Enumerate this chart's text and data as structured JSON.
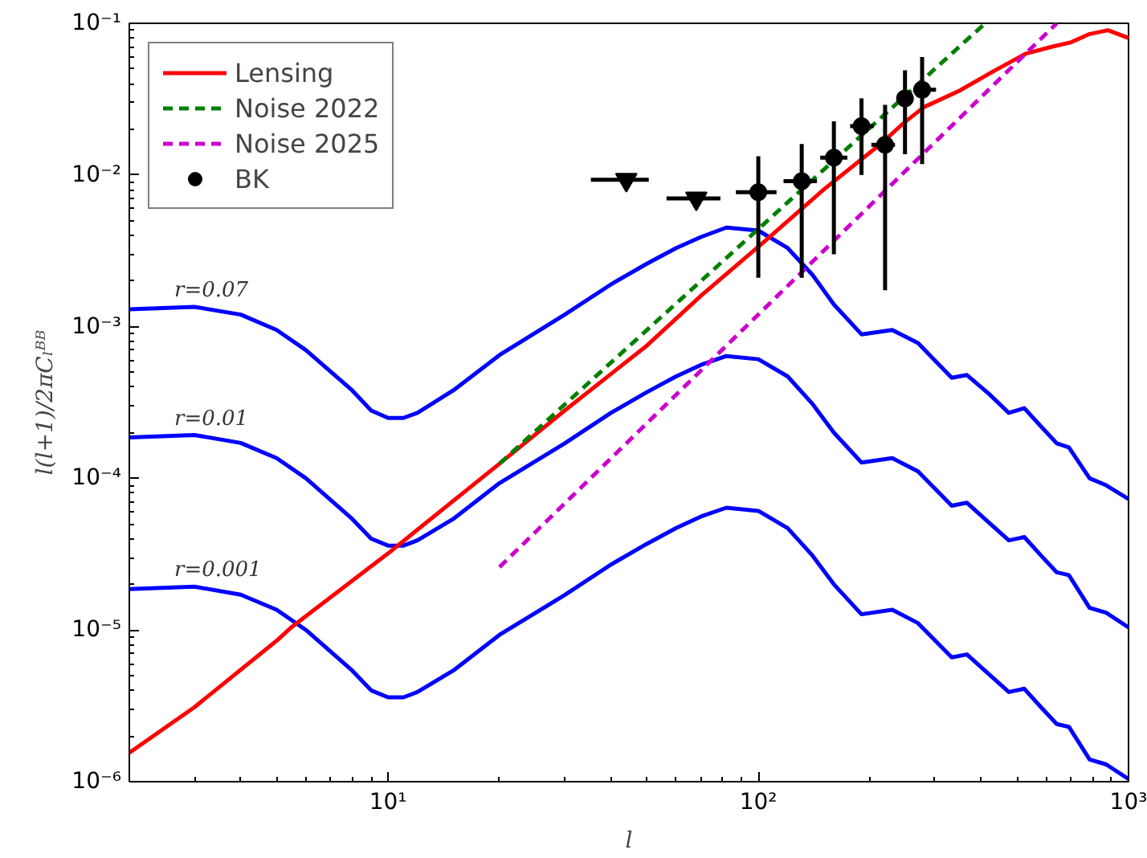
{
  "chart_data": {
    "type": "line",
    "xlabel": "l",
    "ylabel": "l(l+1)/2πCₗᴮᴮ",
    "xlim": [
      2,
      1000
    ],
    "ylim": [
      1e-06,
      0.1
    ],
    "xticks": [
      {
        "value": 10,
        "label": "10¹"
      },
      {
        "value": 100,
        "label": "10²"
      },
      {
        "value": 1000,
        "label": "10³"
      }
    ],
    "yticks": [
      {
        "value": 1e-06,
        "label": "10⁻⁶"
      },
      {
        "value": 1e-05,
        "label": "10⁻⁵"
      },
      {
        "value": 0.0001,
        "label": "10⁻⁴"
      },
      {
        "value": 0.001,
        "label": "10⁻³"
      },
      {
        "value": 0.01,
        "label": "10⁻²"
      },
      {
        "value": 0.1,
        "label": "10⁻¹"
      }
    ],
    "log": "xy",
    "grid": false,
    "legend": "top left",
    "marker": "none",
    "line_style": "solid",
    "series": [
      {
        "color": "#0000ff",
        "x": [
          2,
          3,
          4,
          5,
          6,
          8,
          9,
          10,
          11,
          12,
          15,
          20,
          30,
          40,
          50,
          60,
          70,
          82,
          100,
          120,
          140,
          160,
          190,
          230,
          270,
          333,
          366,
          420,
          475,
          523,
          580,
          640,
          690,
          785,
          870,
          1000
        ],
        "values": [
          0.0013,
          0.00135,
          0.0012,
          0.00095,
          0.0007,
          0.00038,
          0.00028,
          0.00025,
          0.00025,
          0.00027,
          0.00038,
          0.00065,
          0.0012,
          0.0019,
          0.0026,
          0.0033,
          0.0039,
          0.0045,
          0.0043,
          0.0033,
          0.0022,
          0.0014,
          0.00089,
          0.00095,
          0.00078,
          0.00046,
          0.00048,
          0.00036,
          0.00027,
          0.00029,
          0.00022,
          0.00017,
          0.00016,
          0.0001,
          9e-05,
          7.3e-05
        ]
      },
      {
        "color": "#0000ff",
        "x": [
          2,
          3,
          4,
          5,
          6,
          8,
          9,
          10,
          11,
          12,
          15,
          20,
          30,
          40,
          50,
          60,
          70,
          82,
          100,
          120,
          140,
          160,
          190,
          230,
          270,
          333,
          366,
          420,
          475,
          523,
          580,
          640,
          690,
          785,
          870,
          1000
        ],
        "values": [
          0.000186,
          0.000193,
          0.000171,
          0.000136,
          0.0001,
          5.4e-05,
          4e-05,
          3.6e-05,
          3.6e-05,
          3.9e-05,
          5.4e-05,
          9.3e-05,
          0.00017,
          0.00027,
          0.00037,
          0.00047,
          0.00056,
          0.00064,
          0.00061,
          0.00047,
          0.00031,
          0.0002,
          0.000127,
          0.000136,
          0.000111,
          6.6e-05,
          6.9e-05,
          5.1e-05,
          3.9e-05,
          4.1e-05,
          3.1e-05,
          2.4e-05,
          2.3e-05,
          1.4e-05,
          1.3e-05,
          1.04e-05
        ]
      },
      {
        "color": "#0000ff",
        "x": [
          2,
          3,
          4,
          5,
          6,
          8,
          9,
          10,
          11,
          12,
          15,
          20,
          30,
          40,
          50,
          60,
          70,
          82,
          100,
          120,
          140,
          160,
          190,
          230,
          270,
          333,
          366,
          420,
          475,
          523,
          580,
          640,
          690,
          785,
          870,
          1000
        ],
        "values": [
          1.86e-05,
          1.93e-05,
          1.71e-05,
          1.36e-05,
          1e-05,
          5.4e-06,
          4e-06,
          3.6e-06,
          3.6e-06,
          3.9e-06,
          5.4e-06,
          9.3e-06,
          1.7e-05,
          2.7e-05,
          3.7e-05,
          4.7e-05,
          5.6e-05,
          6.4e-05,
          6.1e-05,
          4.7e-05,
          3.1e-05,
          2e-05,
          1.27e-05,
          1.36e-05,
          1.11e-05,
          6.6e-06,
          6.9e-06,
          5.1e-06,
          3.9e-06,
          4.1e-06,
          3.1e-06,
          2.4e-06,
          2.3e-06,
          1.4e-06,
          1.3e-06,
          1.04e-06
        ]
      },
      {
        "name": "Lensing",
        "color": "#ff0000",
        "x": [
          2,
          3,
          5,
          5.5,
          10,
          20,
          30,
          50,
          70,
          106,
          150,
          214,
          247,
          280,
          350,
          430,
          527,
          620,
          700,
          785,
          880,
          1000
        ],
        "values": [
          1.55e-06,
          3.1e-06,
          8.5e-06,
          1.05e-05,
          3.2e-05,
          0.000125,
          0.00028,
          0.00075,
          0.0016,
          0.0038,
          0.008,
          0.016,
          0.022,
          0.028,
          0.036,
          0.048,
          0.063,
          0.07,
          0.075,
          0.085,
          0.09,
          0.08
        ]
      },
      {
        "name": "Noise 2022",
        "color": "#008000",
        "line_style": "dashed",
        "x": [
          20,
          410
        ],
        "values": [
          0.000125,
          0.1
        ]
      },
      {
        "name": "Noise 2025",
        "color": "#cc00cc",
        "line_style": "dashed",
        "x": [
          20,
          640
        ],
        "values": [
          2.6e-05,
          0.1
        ]
      },
      {
        "name": "BK",
        "type": "scatter",
        "marker": "circle",
        "color": "#000000",
        "x": [
          100,
          131,
          160,
          190,
          220,
          249,
          277
        ],
        "values": [
          0.0077,
          0.0091,
          0.013,
          0.021,
          0.0158,
          0.032,
          0.0365
        ],
        "errors": [
          [
            0.0021,
            0.0133
          ],
          [
            0.0021,
            0.016
          ],
          [
            0.003,
            0.0226
          ],
          [
            0.01,
            0.032
          ],
          [
            0.00174,
            0.029
          ],
          [
            0.0137,
            0.049
          ],
          [
            0.0118,
            0.06
          ]
        ],
        "xerrors": [
          [
            87,
            112
          ],
          [
            117,
            144
          ],
          [
            147,
            174
          ],
          [
            177,
            205
          ],
          [
            202,
            234
          ],
          [
            237,
            262
          ],
          [
            262,
            302
          ]
        ]
      },
      {
        "type": "scatter",
        "marker": "triangle",
        "color": "#000000",
        "x": [
          44,
          68
        ],
        "values": [
          0.0093,
          0.007
        ],
        "xerrors": [
          [
            35.3,
            50.6
          ],
          [
            56.5,
            79
          ]
        ]
      }
    ],
    "annotations": [
      "r=0.07",
      "r=0.01",
      "r=0.001"
    ]
  }
}
